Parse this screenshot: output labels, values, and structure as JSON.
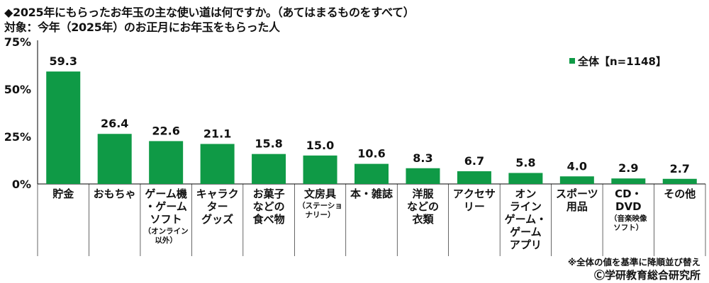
{
  "header": {
    "title": "◆2025年にもらったお年玉の主な使い道は何ですか。（あてはまるものをすべて）",
    "subtitle": "対象：今年（2025年）のお正月にお年玉をもらった人"
  },
  "colors": {
    "bar": "#0f9a46",
    "axis": "#000000",
    "grid": "#cfcfcf"
  },
  "chart_data": {
    "type": "bar",
    "title": "",
    "xlabel": "",
    "ylabel": "",
    "ylim": [
      0,
      75
    ],
    "yticks": [
      0,
      25,
      50,
      75
    ],
    "ytick_labels": [
      "0%",
      "25%",
      "50%",
      "75%"
    ],
    "legend": {
      "position": "top-right",
      "label": "全体【n=1148】"
    },
    "categories": [
      {
        "lines": [
          "貯金"
        ],
        "sub": []
      },
      {
        "lines": [
          "おもちゃ"
        ],
        "sub": []
      },
      {
        "lines": [
          "ゲーム機",
          "・ゲーム",
          "ソフト"
        ],
        "sub": [
          "（オンライン",
          "以外）"
        ]
      },
      {
        "lines": [
          "キャラク",
          "ター",
          "グッズ"
        ],
        "sub": []
      },
      {
        "lines": [
          "お菓子",
          "などの",
          "食べ物"
        ],
        "sub": []
      },
      {
        "lines": [
          "文房具"
        ],
        "sub": [
          "（ステーショ",
          "ナリー）"
        ]
      },
      {
        "lines": [
          "本・雑誌"
        ],
        "sub": []
      },
      {
        "lines": [
          "洋服",
          "などの",
          "衣類"
        ],
        "sub": []
      },
      {
        "lines": [
          "アクセサ",
          "リー"
        ],
        "sub": []
      },
      {
        "lines": [
          "オン",
          "ライン",
          "ゲーム・",
          "ゲーム",
          "アプリ"
        ],
        "sub": []
      },
      {
        "lines": [
          "スポーツ",
          "用品"
        ],
        "sub": []
      },
      {
        "lines": [
          "CD・",
          "DVD"
        ],
        "sub": [
          "（音楽映像",
          "ソフト）"
        ]
      },
      {
        "lines": [
          "その他"
        ],
        "sub": []
      }
    ],
    "series": [
      {
        "name": "全体【n=1148】",
        "values": [
          59.3,
          26.4,
          22.6,
          21.1,
          15.8,
          15.0,
          10.6,
          8.3,
          6.7,
          5.8,
          4.0,
          2.9,
          2.7
        ],
        "value_labels": [
          "59.3",
          "26.4",
          "22.6",
          "21.1",
          "15.8",
          "15.0",
          "10.6",
          "8.3",
          "6.7",
          "5.8",
          "4.0",
          "2.9",
          "2.7"
        ]
      }
    ],
    "grid": false
  },
  "footer": {
    "note": "※全体の値を基準に降順並び替え",
    "credit": "Ⓒ学研教育総合研究所"
  }
}
